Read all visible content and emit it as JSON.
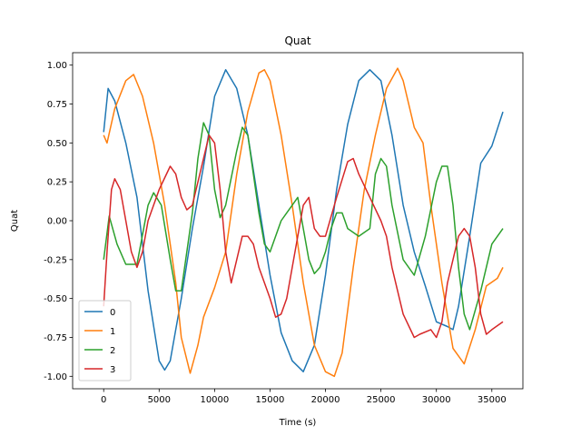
{
  "chart_data": {
    "type": "line",
    "title": "Quat",
    "xlabel": "Time (s)",
    "ylabel": "Quat",
    "xlim": [
      -2800,
      37800
    ],
    "ylim": [
      -1.08,
      1.08
    ],
    "xticks": [
      0,
      5000,
      10000,
      15000,
      20000,
      25000,
      30000,
      35000
    ],
    "yticks": [
      -1.0,
      -0.75,
      -0.5,
      -0.25,
      0.0,
      0.25,
      0.5,
      0.75,
      1.0
    ],
    "grid": false,
    "legend_position": "lower-left",
    "series": [
      {
        "name": "0",
        "color": "#1f77b4",
        "points": [
          [
            0,
            0.57
          ],
          [
            400,
            0.85
          ],
          [
            1000,
            0.77
          ],
          [
            2000,
            0.5
          ],
          [
            3000,
            0.15
          ],
          [
            4000,
            -0.45
          ],
          [
            5000,
            -0.9
          ],
          [
            5500,
            -0.96
          ],
          [
            6000,
            -0.9
          ],
          [
            7000,
            -0.5
          ],
          [
            8000,
            -0.05
          ],
          [
            9000,
            0.35
          ],
          [
            10000,
            0.8
          ],
          [
            11000,
            0.97
          ],
          [
            12000,
            0.85
          ],
          [
            13000,
            0.55
          ],
          [
            14000,
            0.1
          ],
          [
            15000,
            -0.35
          ],
          [
            16000,
            -0.72
          ],
          [
            17000,
            -0.9
          ],
          [
            18000,
            -0.97
          ],
          [
            19000,
            -0.8
          ],
          [
            20000,
            -0.35
          ],
          [
            21000,
            0.2
          ],
          [
            22000,
            0.62
          ],
          [
            23000,
            0.9
          ],
          [
            24000,
            0.97
          ],
          [
            25000,
            0.9
          ],
          [
            26000,
            0.55
          ],
          [
            27000,
            0.1
          ],
          [
            28000,
            -0.2
          ],
          [
            29000,
            -0.42
          ],
          [
            30000,
            -0.65
          ],
          [
            31000,
            -0.68
          ],
          [
            31500,
            -0.7
          ],
          [
            32000,
            -0.55
          ],
          [
            33000,
            -0.1
          ],
          [
            34000,
            0.37
          ],
          [
            35000,
            0.48
          ],
          [
            36000,
            0.7
          ]
        ]
      },
      {
        "name": "1",
        "color": "#ff7f0e",
        "points": [
          [
            0,
            0.55
          ],
          [
            300,
            0.5
          ],
          [
            1000,
            0.72
          ],
          [
            2000,
            0.9
          ],
          [
            2700,
            0.94
          ],
          [
            3500,
            0.8
          ],
          [
            4500,
            0.5
          ],
          [
            5500,
            0.1
          ],
          [
            6500,
            -0.4
          ],
          [
            7000,
            -0.75
          ],
          [
            7800,
            -0.98
          ],
          [
            8500,
            -0.8
          ],
          [
            9000,
            -0.62
          ],
          [
            10000,
            -0.43
          ],
          [
            11000,
            -0.2
          ],
          [
            12000,
            0.3
          ],
          [
            13000,
            0.7
          ],
          [
            14000,
            0.95
          ],
          [
            14500,
            0.97
          ],
          [
            15000,
            0.9
          ],
          [
            16000,
            0.55
          ],
          [
            17000,
            0.1
          ],
          [
            18000,
            -0.4
          ],
          [
            19000,
            -0.8
          ],
          [
            20000,
            -0.97
          ],
          [
            20800,
            -1.0
          ],
          [
            21500,
            -0.85
          ],
          [
            22500,
            -0.3
          ],
          [
            23500,
            0.2
          ],
          [
            24500,
            0.55
          ],
          [
            25500,
            0.85
          ],
          [
            26500,
            0.98
          ],
          [
            27000,
            0.9
          ],
          [
            28000,
            0.6
          ],
          [
            28800,
            0.5
          ],
          [
            29500,
            0.1
          ],
          [
            30500,
            -0.4
          ],
          [
            31500,
            -0.82
          ],
          [
            32500,
            -0.92
          ],
          [
            33500,
            -0.7
          ],
          [
            34500,
            -0.42
          ],
          [
            35500,
            -0.37
          ],
          [
            36000,
            -0.3
          ]
        ]
      },
      {
        "name": "2",
        "color": "#2ca02c",
        "points": [
          [
            0,
            -0.25
          ],
          [
            500,
            0.03
          ],
          [
            1200,
            -0.15
          ],
          [
            2000,
            -0.28
          ],
          [
            3000,
            -0.28
          ],
          [
            4000,
            0.1
          ],
          [
            4500,
            0.18
          ],
          [
            5200,
            0.1
          ],
          [
            6000,
            -0.25
          ],
          [
            6500,
            -0.45
          ],
          [
            7000,
            -0.45
          ],
          [
            8000,
            0.05
          ],
          [
            8500,
            0.4
          ],
          [
            9000,
            0.63
          ],
          [
            9500,
            0.55
          ],
          [
            10000,
            0.2
          ],
          [
            10500,
            0.02
          ],
          [
            11000,
            0.1
          ],
          [
            12000,
            0.45
          ],
          [
            12500,
            0.6
          ],
          [
            13000,
            0.55
          ],
          [
            14000,
            0.05
          ],
          [
            14500,
            -0.15
          ],
          [
            15000,
            -0.2
          ],
          [
            15500,
            -0.1
          ],
          [
            16000,
            0.0
          ],
          [
            16500,
            0.05
          ],
          [
            17000,
            0.1
          ],
          [
            17500,
            0.15
          ],
          [
            18000,
            -0.05
          ],
          [
            18500,
            -0.25
          ],
          [
            19000,
            -0.34
          ],
          [
            19500,
            -0.3
          ],
          [
            20000,
            -0.2
          ],
          [
            20500,
            -0.05
          ],
          [
            21000,
            0.05
          ],
          [
            21500,
            0.05
          ],
          [
            22000,
            -0.05
          ],
          [
            23000,
            -0.1
          ],
          [
            24000,
            -0.05
          ],
          [
            24500,
            0.3
          ],
          [
            25000,
            0.4
          ],
          [
            25500,
            0.35
          ],
          [
            26000,
            0.1
          ],
          [
            27000,
            -0.25
          ],
          [
            28000,
            -0.35
          ],
          [
            29000,
            -0.1
          ],
          [
            30000,
            0.25
          ],
          [
            30500,
            0.35
          ],
          [
            31000,
            0.35
          ],
          [
            31500,
            0.1
          ],
          [
            32000,
            -0.3
          ],
          [
            32500,
            -0.6
          ],
          [
            33000,
            -0.7
          ],
          [
            34000,
            -0.45
          ],
          [
            35000,
            -0.15
          ],
          [
            36000,
            -0.05
          ]
        ]
      },
      {
        "name": "3",
        "color": "#d62728",
        "points": [
          [
            0,
            -0.55
          ],
          [
            300,
            -0.2
          ],
          [
            700,
            0.2
          ],
          [
            1000,
            0.27
          ],
          [
            1500,
            0.2
          ],
          [
            2000,
            0.0
          ],
          [
            2500,
            -0.2
          ],
          [
            3000,
            -0.3
          ],
          [
            3500,
            -0.2
          ],
          [
            4000,
            0.0
          ],
          [
            5000,
            0.2
          ],
          [
            6000,
            0.35
          ],
          [
            6500,
            0.3
          ],
          [
            7000,
            0.15
          ],
          [
            7500,
            0.07
          ],
          [
            8000,
            0.1
          ],
          [
            9000,
            0.4
          ],
          [
            9500,
            0.55
          ],
          [
            10000,
            0.5
          ],
          [
            10500,
            0.2
          ],
          [
            11000,
            -0.2
          ],
          [
            11500,
            -0.4
          ],
          [
            12000,
            -0.25
          ],
          [
            12500,
            -0.1
          ],
          [
            13000,
            -0.1
          ],
          [
            13500,
            -0.15
          ],
          [
            14000,
            -0.3
          ],
          [
            15000,
            -0.5
          ],
          [
            15500,
            -0.62
          ],
          [
            16000,
            -0.6
          ],
          [
            16500,
            -0.5
          ],
          [
            17000,
            -0.3
          ],
          [
            17500,
            -0.1
          ],
          [
            18000,
            0.1
          ],
          [
            18500,
            0.15
          ],
          [
            19000,
            -0.05
          ],
          [
            19500,
            -0.1
          ],
          [
            20000,
            -0.1
          ],
          [
            21000,
            0.15
          ],
          [
            22000,
            0.38
          ],
          [
            22500,
            0.4
          ],
          [
            23000,
            0.3
          ],
          [
            24000,
            0.15
          ],
          [
            25000,
            0.0
          ],
          [
            25500,
            -0.1
          ],
          [
            26000,
            -0.3
          ],
          [
            27000,
            -0.6
          ],
          [
            28000,
            -0.75
          ],
          [
            28500,
            -0.73
          ],
          [
            29500,
            -0.7
          ],
          [
            30000,
            -0.75
          ],
          [
            30500,
            -0.65
          ],
          [
            31000,
            -0.4
          ],
          [
            31500,
            -0.25
          ],
          [
            32000,
            -0.1
          ],
          [
            32500,
            -0.05
          ],
          [
            33000,
            -0.1
          ],
          [
            33500,
            -0.3
          ],
          [
            34000,
            -0.6
          ],
          [
            34500,
            -0.73
          ],
          [
            35000,
            -0.7
          ],
          [
            36000,
            -0.65
          ]
        ]
      }
    ]
  }
}
